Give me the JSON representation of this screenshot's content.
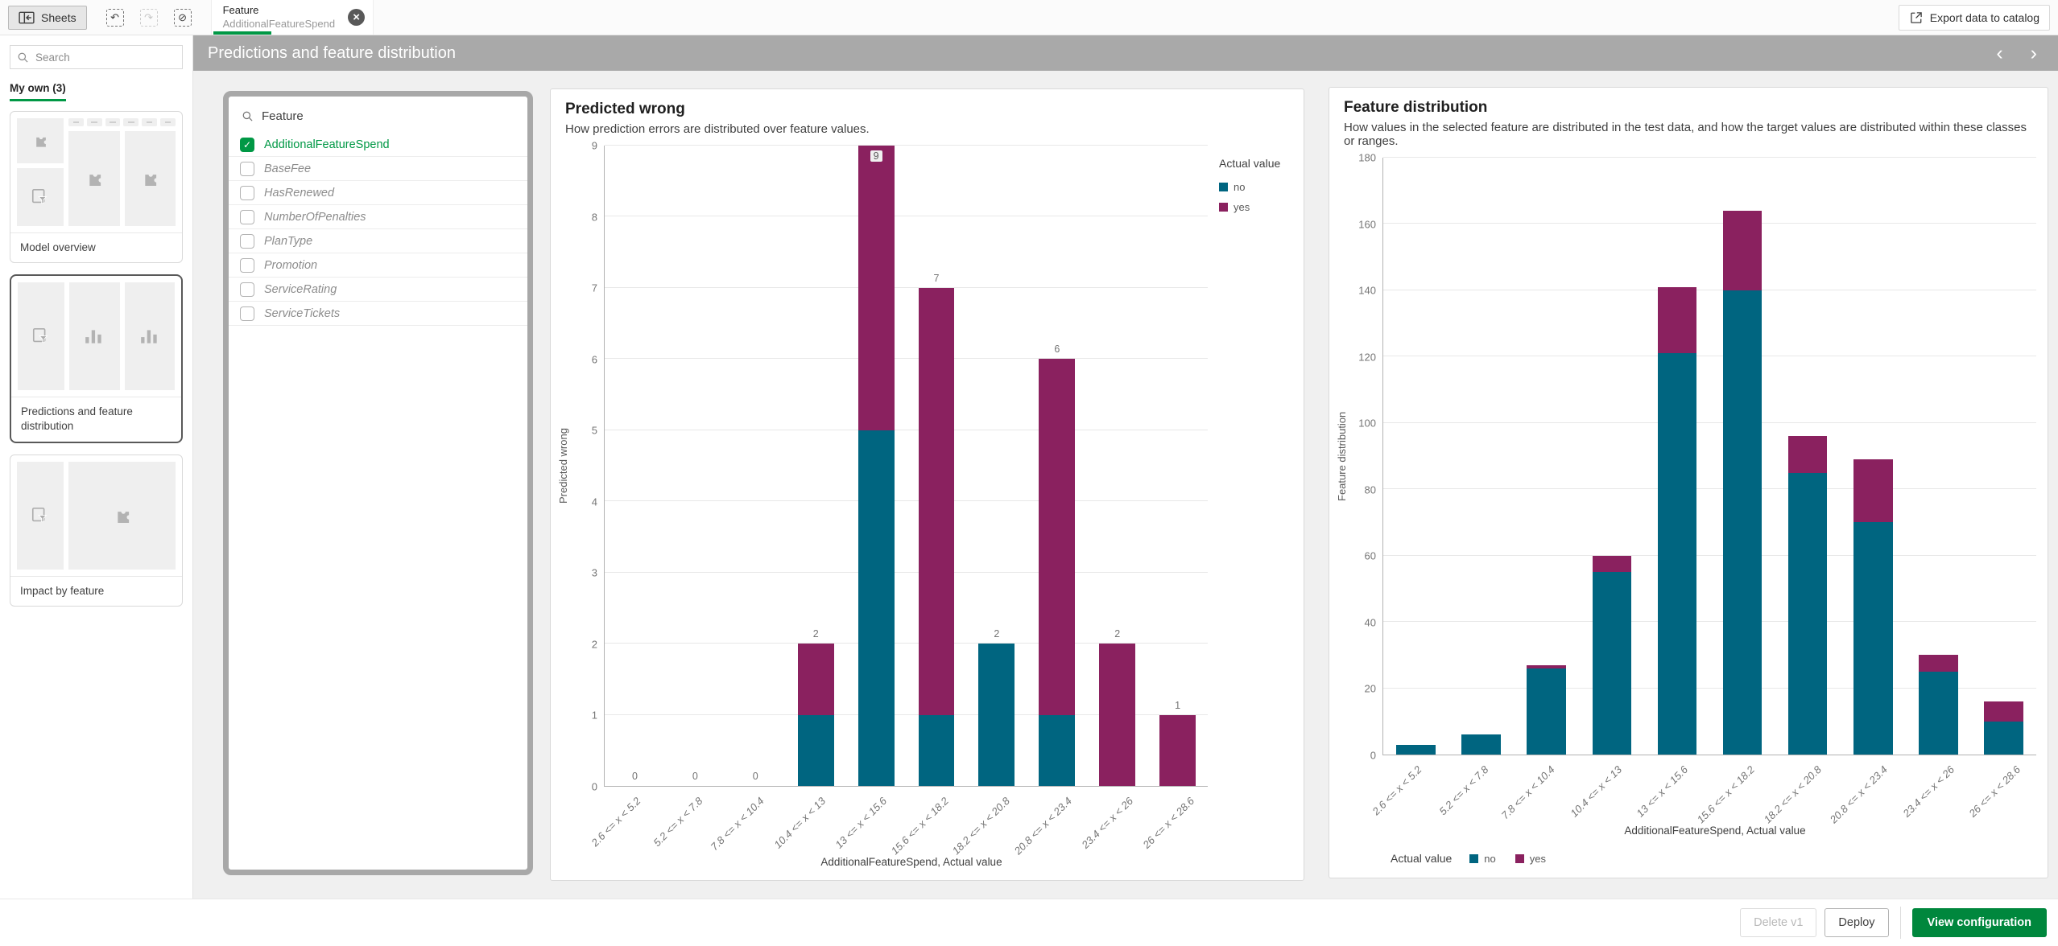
{
  "topbar": {
    "sheets_label": "Sheets",
    "selection_chip": {
      "field": "Feature",
      "value": "AdditionalFeatureSpend"
    },
    "export_label": "Export data to catalog"
  },
  "titlebar": {
    "title": "Predictions and feature distribution"
  },
  "sidebar": {
    "search_placeholder": "Search",
    "section_label": "My own (3)",
    "sheets": [
      {
        "label": "Model overview"
      },
      {
        "label": "Predictions and feature distribution"
      },
      {
        "label": "Impact by feature"
      }
    ]
  },
  "filter_panel": {
    "title": "Feature",
    "items": [
      {
        "label": "AdditionalFeatureSpend",
        "checked": true
      },
      {
        "label": "BaseFee",
        "checked": false
      },
      {
        "label": "HasRenewed",
        "checked": false
      },
      {
        "label": "NumberOfPenalties",
        "checked": false
      },
      {
        "label": "PlanType",
        "checked": false
      },
      {
        "label": "Promotion",
        "checked": false
      },
      {
        "label": "ServiceRating",
        "checked": false
      },
      {
        "label": "ServiceTickets",
        "checked": false
      }
    ]
  },
  "colors": {
    "no": "#006580",
    "yes": "#8a215f",
    "accent_green": "#009845",
    "button_green": "#00873d",
    "titlebar_gray": "#a9a9a9"
  },
  "chart_data": [
    {
      "type": "bar",
      "stacked": true,
      "title": "Predicted wrong",
      "subtitle": "How prediction errors are distributed over feature values.",
      "xlabel": "AdditionalFeatureSpend, Actual value",
      "ylabel": "Predicted wrong",
      "ylim": [
        0,
        9
      ],
      "ytick_step": 1,
      "grid": true,
      "show_bar_labels": true,
      "legend_title": "Actual value",
      "legend_position": "right",
      "categories": [
        "2.6 <= x < 5.2",
        "5.2 <= x < 7.8",
        "7.8 <= x < 10.4",
        "10.4 <= x < 13",
        "13 <= x < 15.6",
        "15.6 <= x < 18.2",
        "18.2 <= x < 20.8",
        "20.8 <= x < 23.4",
        "23.4 <= x < 26",
        "26 <= x < 28.6"
      ],
      "series": [
        {
          "name": "no",
          "color": "#006580",
          "values": [
            0,
            0,
            0,
            1,
            5,
            1,
            2,
            1,
            0,
            0
          ]
        },
        {
          "name": "yes",
          "color": "#8a215f",
          "values": [
            0,
            0,
            0,
            1,
            4,
            6,
            0,
            5,
            2,
            1
          ]
        }
      ],
      "totals": [
        0,
        0,
        0,
        2,
        9,
        7,
        2,
        6,
        2,
        1
      ]
    },
    {
      "type": "bar",
      "stacked": true,
      "title": "Feature distribution",
      "subtitle": "How values in the selected feature are distributed in the test data, and how the target values are distributed within these classes or ranges.",
      "xlabel": "AdditionalFeatureSpend, Actual value",
      "ylabel": "Feature distribution",
      "ylim": [
        0,
        180
      ],
      "ytick_step": 20,
      "grid": true,
      "show_bar_labels": false,
      "legend_title": "Actual value",
      "legend_position": "bottom",
      "categories": [
        "2.6 <= x < 5.2",
        "5.2 <= x < 7.8",
        "7.8 <= x < 10.4",
        "10.4 <= x < 13",
        "13 <= x < 15.6",
        "15.6 <= x < 18.2",
        "18.2 <= x < 20.8",
        "20.8 <= x < 23.4",
        "23.4 <= x < 26",
        "26 <= x < 28.6"
      ],
      "series": [
        {
          "name": "no",
          "color": "#006580",
          "values": [
            3,
            6,
            26,
            55,
            121,
            140,
            85,
            70,
            25,
            10
          ]
        },
        {
          "name": "yes",
          "color": "#8a215f",
          "values": [
            0,
            0,
            1,
            5,
            20,
            24,
            11,
            19,
            5,
            6
          ]
        }
      ],
      "totals": [
        3,
        6,
        27,
        60,
        141,
        164,
        96,
        89,
        30,
        16
      ]
    }
  ],
  "footer": {
    "delete_label": "Delete v1",
    "deploy_label": "Deploy",
    "view_configuration_label": "View configuration"
  }
}
